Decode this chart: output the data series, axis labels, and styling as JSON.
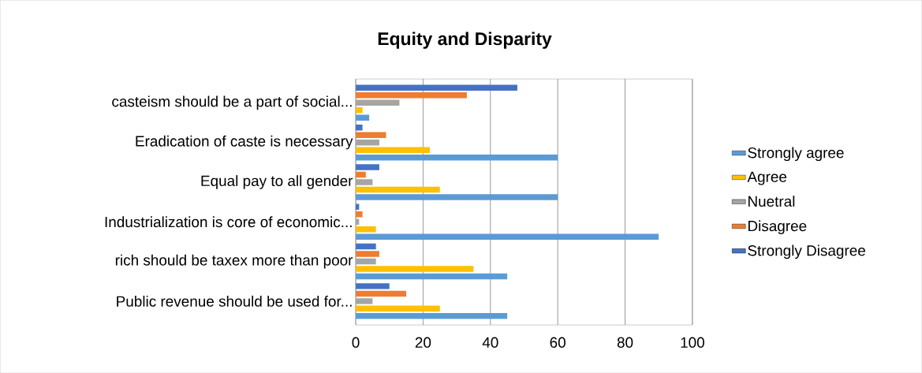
{
  "chart_data": {
    "type": "bar",
    "orientation": "horizontal",
    "title": "Equity and Disparity",
    "categories": [
      "casteism should be a part of social...",
      "Eradication of caste is necessary",
      "Equal pay to all gender",
      "Industrialization is core of economic...",
      "rich should be taxex more than poor",
      "Public revenue should be used for..."
    ],
    "series": [
      {
        "name": "Strongly agree",
        "color": "#5b9bd5",
        "values": [
          4,
          60,
          60,
          90,
          45,
          45
        ]
      },
      {
        "name": "Agree",
        "color": "#ffc000",
        "values": [
          2,
          22,
          25,
          6,
          35,
          25
        ]
      },
      {
        "name": "Nuetral",
        "color": "#a5a5a5",
        "values": [
          13,
          7,
          5,
          1,
          6,
          5
        ]
      },
      {
        "name": "Disagree",
        "color": "#ed7d31",
        "values": [
          33,
          9,
          3,
          2,
          7,
          15
        ]
      },
      {
        "name": "Strongly Disagree",
        "color": "#4472c4",
        "values": [
          48,
          2,
          7,
          1,
          6,
          10
        ]
      }
    ],
    "xlim": [
      0,
      100
    ],
    "xticks": [
      0,
      20,
      40,
      60,
      80,
      100
    ],
    "grid": "x",
    "legend": "right"
  }
}
